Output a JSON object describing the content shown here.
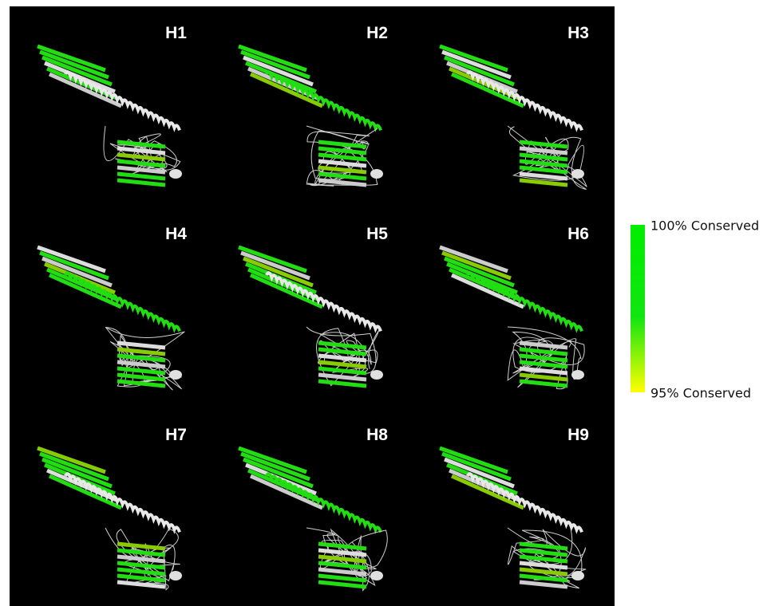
{
  "panels": [
    {
      "label": "H1"
    },
    {
      "label": "H2"
    },
    {
      "label": "H3"
    },
    {
      "label": "H4"
    },
    {
      "label": "H5"
    },
    {
      "label": "H6"
    },
    {
      "label": "H7"
    },
    {
      "label": "H8"
    },
    {
      "label": "H9"
    }
  ],
  "legend": {
    "top": "100% Conserved",
    "bottom": "95% Conserved"
  }
}
